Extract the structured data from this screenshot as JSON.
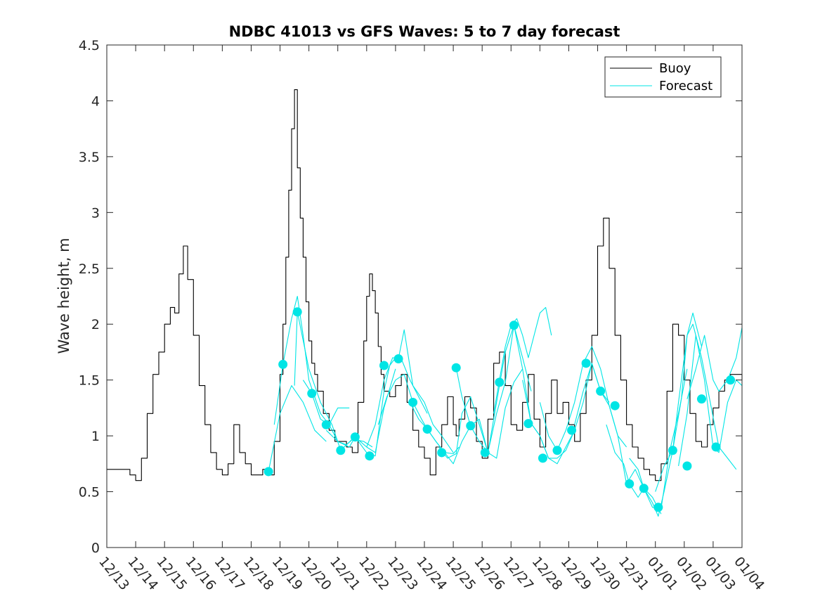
{
  "chart_data": {
    "type": "line",
    "title": "NDBC 41013 vs GFS Waves: 5 to 7 day forecast",
    "xlabel": "",
    "ylabel": "Wave height, m",
    "xlim": [
      0,
      22
    ],
    "ylim": [
      0,
      4.5
    ],
    "yticks": [
      0,
      0.5,
      1,
      1.5,
      2,
      2.5,
      3,
      3.5,
      4,
      4.5
    ],
    "ytick_labels": [
      "0",
      "0.5",
      "1",
      "1.5",
      "2",
      "2.5",
      "3",
      "3.5",
      "4",
      "4.5"
    ],
    "xticks": [
      0,
      1,
      2,
      3,
      4,
      5,
      6,
      7,
      8,
      9,
      10,
      11,
      12,
      13,
      14,
      15,
      16,
      17,
      18,
      19,
      20,
      21,
      22
    ],
    "xtick_labels": [
      "12/13",
      "12/14",
      "12/15",
      "12/16",
      "12/17",
      "12/18",
      "12/19",
      "12/20",
      "12/21",
      "12/22",
      "12/23",
      "12/24",
      "12/25",
      "12/26",
      "12/27",
      "12/28",
      "12/29",
      "12/30",
      "12/31",
      "01/01",
      "01/02",
      "01/03",
      "01/04"
    ],
    "x_unit": "days since 12/13",
    "legend": {
      "location": "top-right",
      "entries": [
        {
          "label": "Buoy",
          "color": "#000000"
        },
        {
          "label": "Forecast",
          "color": "#00e5e5"
        }
      ]
    },
    "series": [
      {
        "name": "Buoy",
        "color": "#000000",
        "x": [
          0,
          0.5,
          0.8,
          1.0,
          1.2,
          1.4,
          1.6,
          1.8,
          2.0,
          2.2,
          2.35,
          2.5,
          2.65,
          2.8,
          3.0,
          3.2,
          3.4,
          3.6,
          3.8,
          4.0,
          4.2,
          4.4,
          4.6,
          4.8,
          5.0,
          5.2,
          5.4,
          5.6,
          5.8,
          6.0,
          6.1,
          6.2,
          6.3,
          6.4,
          6.5,
          6.6,
          6.7,
          6.8,
          6.9,
          7.0,
          7.1,
          7.2,
          7.3,
          7.5,
          7.7,
          7.9,
          8.1,
          8.3,
          8.5,
          8.7,
          8.9,
          9.0,
          9.1,
          9.2,
          9.3,
          9.4,
          9.5,
          9.6,
          9.8,
          10.0,
          10.2,
          10.4,
          10.6,
          10.8,
          11.0,
          11.2,
          11.4,
          11.6,
          11.8,
          12.0,
          12.1,
          12.2,
          12.4,
          12.6,
          12.8,
          13.0,
          13.2,
          13.4,
          13.6,
          13.8,
          14.0,
          14.2,
          14.4,
          14.6,
          14.8,
          15.0,
          15.2,
          15.4,
          15.6,
          15.8,
          16.0,
          16.2,
          16.4,
          16.6,
          16.8,
          17.0,
          17.2,
          17.4,
          17.6,
          17.8,
          18.0,
          18.2,
          18.4,
          18.6,
          18.8,
          19.0,
          19.2,
          19.4,
          19.6,
          19.8,
          20.0,
          20.2,
          20.4,
          20.6,
          20.8,
          21.0,
          21.2,
          21.4,
          21.6,
          21.8,
          22.0
        ],
        "y": [
          0.7,
          0.7,
          0.65,
          0.6,
          0.8,
          1.2,
          1.55,
          1.75,
          2.0,
          2.15,
          2.1,
          2.45,
          2.7,
          2.4,
          1.9,
          1.45,
          1.1,
          0.85,
          0.7,
          0.65,
          0.75,
          1.1,
          0.85,
          0.75,
          0.65,
          0.65,
          0.7,
          0.65,
          0.95,
          1.55,
          2.0,
          2.6,
          3.2,
          3.75,
          4.1,
          3.4,
          2.95,
          2.6,
          2.2,
          1.85,
          1.65,
          1.55,
          1.4,
          1.2,
          1.05,
          0.95,
          0.95,
          0.9,
          0.85,
          1.3,
          1.85,
          2.25,
          2.45,
          2.3,
          2.1,
          1.8,
          1.55,
          1.4,
          1.35,
          1.45,
          1.55,
          1.3,
          1.05,
          0.9,
          0.8,
          0.65,
          0.9,
          1.1,
          1.35,
          1.1,
          1.0,
          1.15,
          1.35,
          1.25,
          0.95,
          0.8,
          1.15,
          1.65,
          1.75,
          1.45,
          1.1,
          1.05,
          1.3,
          1.55,
          1.15,
          0.9,
          1.2,
          1.5,
          1.2,
          1.3,
          1.1,
          0.95,
          1.2,
          1.5,
          1.9,
          2.7,
          2.95,
          2.5,
          1.9,
          1.5,
          1.1,
          0.9,
          0.8,
          0.7,
          0.65,
          0.6,
          0.75,
          1.4,
          2.0,
          1.9,
          1.5,
          1.2,
          0.95,
          0.9,
          1.1,
          1.25,
          1.4,
          1.5,
          1.55,
          1.55,
          1.5
        ]
      },
      {
        "name": "Forecast 1",
        "color": "#00e5e5",
        "x": [
          5.6,
          6.0,
          6.4,
          6.8,
          7.2,
          7.6
        ],
        "y": [
          0.68,
          1.2,
          1.45,
          1.3,
          1.05,
          0.95
        ]
      },
      {
        "name": "Forecast 2",
        "color": "#00e5e5",
        "x": [
          5.8,
          6.1,
          6.4,
          6.6,
          6.8,
          7.0,
          7.4,
          7.7,
          8.0,
          8.4
        ],
        "y": [
          1.1,
          1.64,
          2.05,
          2.25,
          1.9,
          1.5,
          1.2,
          1.1,
          1.25,
          1.25
        ]
      },
      {
        "name": "Forecast 3",
        "color": "#00e5e5",
        "x": [
          6.5,
          6.6,
          7.0,
          7.4,
          7.8,
          8.1,
          8.5,
          8.9,
          9.2
        ],
        "y": [
          1.45,
          2.11,
          1.6,
          1.3,
          1.1,
          0.87,
          0.97,
          0.95,
          0.9
        ]
      },
      {
        "name": "Forecast 4",
        "color": "#00e5e5",
        "x": [
          6.8,
          7.1,
          7.4,
          7.7,
          8.0,
          8.3,
          8.6,
          9.0,
          9.3,
          9.6,
          10.0
        ],
        "y": [
          1.5,
          1.38,
          1.15,
          1.1,
          0.95,
          0.92,
          0.99,
          0.9,
          0.85,
          1.25,
          1.6
        ]
      },
      {
        "name": "Forecast 5",
        "color": "#00e5e5",
        "x": [
          7.6,
          8.0,
          8.4,
          8.6,
          9.0,
          9.3,
          9.6,
          9.8,
          10.0,
          10.2,
          10.5,
          10.8,
          11.1
        ],
        "y": [
          1.05,
          0.95,
          0.9,
          0.99,
          0.85,
          0.82,
          1.4,
          1.63,
          1.7,
          1.69,
          1.5,
          1.35,
          1.2
        ]
      },
      {
        "name": "Forecast 6",
        "color": "#00e5e5",
        "x": [
          9.0,
          9.3,
          9.6,
          9.9,
          10.1,
          10.3,
          10.6,
          11.0,
          11.3,
          11.6,
          12.0
        ],
        "y": [
          0.9,
          1.1,
          1.5,
          1.7,
          1.69,
          1.95,
          1.45,
          1.3,
          1.1,
          1.0,
          0.85
        ]
      },
      {
        "name": "Forecast 7",
        "color": "#00e5e5",
        "x": [
          9.4,
          9.7,
          10.0,
          10.3,
          10.6,
          10.9,
          11.1,
          11.4,
          11.7,
          12.0,
          12.2
        ],
        "y": [
          1.1,
          1.35,
          1.5,
          1.55,
          1.3,
          1.15,
          1.06,
          0.95,
          0.85,
          0.84,
          0.9
        ]
      },
      {
        "name": "Forecast 8",
        "color": "#00e5e5",
        "x": [
          10.5,
          10.8,
          11.1,
          11.4,
          11.7,
          12.0,
          12.3,
          12.6,
          12.9,
          13.2
        ],
        "y": [
          1.3,
          1.15,
          1.06,
          0.95,
          0.85,
          0.75,
          0.95,
          1.09,
          1.15,
          0.85
        ]
      },
      {
        "name": "Forecast 9",
        "color": "#00e5e5",
        "x": [
          11.5,
          11.8,
          12.1,
          12.3,
          12.6,
          12.9,
          13.2,
          13.5,
          13.8,
          14.1,
          14.4
        ],
        "y": [
          0.9,
          0.8,
          0.84,
          1.2,
          1.35,
          1.1,
          0.85,
          0.8,
          1.25,
          1.48,
          1.6
        ]
      },
      {
        "name": "Forecast 10",
        "color": "#00e5e5",
        "x": [
          12.1,
          12.3,
          12.6,
          12.9,
          13.2,
          13.5,
          13.8,
          14.1,
          14.4,
          14.7
        ],
        "y": [
          1.61,
          1.35,
          1.09,
          0.95,
          0.85,
          1.2,
          1.48,
          1.99,
          1.7,
          1.4
        ]
      },
      {
        "name": "Forecast 11",
        "color": "#00e5e5",
        "x": [
          13.2,
          13.5,
          13.8,
          14.1,
          14.4,
          14.7,
          15.0,
          15.3,
          15.6,
          15.9,
          16.2
        ],
        "y": [
          0.85,
          1.3,
          1.75,
          1.99,
          1.6,
          1.11,
          1.0,
          0.8,
          0.75,
          0.9,
          1.05
        ]
      },
      {
        "name": "Forecast 12",
        "color": "#00e5e5",
        "x": [
          13.4,
          13.6,
          13.8,
          14.0,
          14.2,
          14.4,
          14.6,
          14.8,
          15.0,
          15.2,
          15.4
        ],
        "y": [
          1.2,
          1.5,
          1.8,
          1.99,
          2.05,
          1.9,
          1.7,
          1.9,
          2.1,
          2.15,
          1.9
        ]
      },
      {
        "name": "Forecast 13",
        "color": "#00e5e5",
        "x": [
          14.4,
          14.7,
          15.0,
          15.3,
          15.6,
          15.9,
          16.2,
          16.5,
          16.8,
          17.1,
          17.4
        ],
        "y": [
          1.5,
          1.11,
          1.0,
          0.8,
          0.8,
          0.87,
          1.05,
          1.3,
          1.65,
          1.4,
          1.3
        ]
      },
      {
        "name": "Forecast 14",
        "color": "#00e5e5",
        "x": [
          15.0,
          15.3,
          15.6,
          15.9,
          16.2,
          16.5,
          16.8,
          17.1,
          17.4,
          17.7,
          18.0
        ],
        "y": [
          1.3,
          1.0,
          0.87,
          1.05,
          1.3,
          1.65,
          1.8,
          1.6,
          1.27,
          1.0,
          0.9
        ]
      },
      {
        "name": "Forecast 15",
        "color": "#00e5e5",
        "x": [
          16.2,
          16.5,
          16.8,
          17.1,
          17.4,
          17.7,
          18.0,
          18.3,
          18.6,
          18.9,
          19.2
        ],
        "y": [
          1.1,
          1.4,
          1.65,
          1.4,
          1.27,
          1.0,
          0.57,
          0.7,
          0.53,
          0.45,
          0.3
        ]
      },
      {
        "name": "Forecast 16",
        "color": "#00e5e5",
        "x": [
          17.3,
          17.6,
          17.9,
          18.1,
          18.4,
          18.6,
          18.9,
          19.2,
          19.5,
          19.8,
          20.1
        ],
        "y": [
          1.1,
          0.85,
          0.75,
          0.57,
          0.45,
          0.53,
          0.36,
          0.35,
          0.87,
          1.2,
          1.6
        ]
      },
      {
        "name": "Forecast 17",
        "color": "#00e5e5",
        "x": [
          18.1,
          18.4,
          18.6,
          18.9,
          19.1,
          19.3,
          19.6,
          19.8,
          20.1,
          20.3,
          20.6
        ],
        "y": [
          0.8,
          0.7,
          0.53,
          0.4,
          0.28,
          0.5,
          0.87,
          1.3,
          1.9,
          2.1,
          1.8
        ]
      },
      {
        "name": "Forecast 18",
        "color": "#00e5e5",
        "x": [
          19.0,
          19.3,
          19.6,
          19.9,
          20.1,
          20.3,
          20.6,
          20.9,
          21.2,
          21.5,
          21.8
        ],
        "y": [
          0.5,
          0.73,
          0.87,
          1.33,
          1.9,
          2.0,
          1.7,
          1.3,
          0.9,
          0.8,
          0.7
        ]
      },
      {
        "name": "Forecast 19",
        "color": "#00e5e5",
        "x": [
          19.8,
          20.1,
          20.4,
          20.7,
          21.0,
          21.2,
          21.5,
          21.8,
          22.0
        ],
        "y": [
          0.73,
          1.2,
          1.9,
          1.5,
          0.9,
          0.85,
          1.3,
          1.5,
          1.45
        ]
      },
      {
        "name": "Forecast 20",
        "color": "#00e5e5",
        "x": [
          20.1,
          20.4,
          20.7,
          21.0,
          21.2,
          21.5,
          21.8,
          22.0
        ],
        "y": [
          1.33,
          1.6,
          1.9,
          1.5,
          1.4,
          1.5,
          1.7,
          1.97
        ]
      }
    ],
    "markers": {
      "name": "Forecast markers",
      "color": "#00e5e5",
      "x": [
        5.6,
        6.1,
        6.6,
        7.1,
        7.6,
        8.1,
        8.6,
        9.1,
        9.6,
        10.1,
        10.6,
        11.1,
        11.6,
        12.1,
        12.6,
        13.1,
        13.6,
        14.1,
        14.6,
        15.1,
        15.6,
        16.1,
        16.6,
        17.1,
        17.6,
        18.1,
        18.6,
        19.1,
        19.6,
        20.1,
        20.6,
        21.1,
        21.6
      ],
      "y": [
        0.68,
        1.64,
        2.11,
        1.38,
        1.1,
        0.87,
        0.99,
        0.82,
        1.63,
        1.69,
        1.3,
        1.06,
        0.85,
        1.61,
        1.09,
        0.85,
        1.48,
        1.99,
        1.11,
        0.8,
        0.87,
        1.05,
        1.65,
        1.4,
        1.27,
        0.57,
        0.53,
        0.36,
        0.87,
        0.73,
        1.33,
        0.9,
        1.5
      ]
    }
  }
}
